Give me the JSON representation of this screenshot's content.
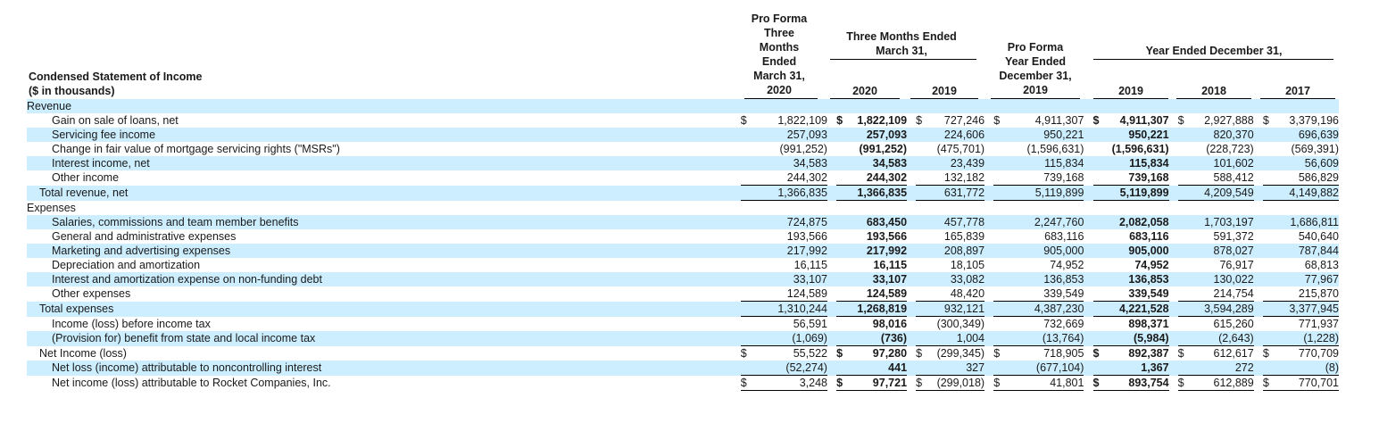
{
  "header": {
    "title_line1": "Condensed Statement of Income",
    "title_line2": "($ in thousands)",
    "col_proforma_q": [
      "Pro Forma",
      "Three",
      "Months",
      "Ended",
      "March 31,",
      "2020"
    ],
    "group_three_months": [
      "Three Months Ended",
      "March 31,"
    ],
    "col_q2020": "2020",
    "col_q2019": "2019",
    "col_proforma_y": [
      "Pro Forma",
      "Year Ended",
      "December 31,",
      "2019"
    ],
    "group_year": "Year Ended December 31,",
    "col_y2019": "2019",
    "col_y2018": "2018",
    "col_y2017": "2017"
  },
  "rows": [
    {
      "label": "Revenue",
      "indent": 0,
      "shade": true,
      "section": true
    },
    {
      "label": "Gain on sale of loans, net",
      "indent": 2,
      "shade": false,
      "cells": [
        {
          "s": "$",
          "v": "1,822,109"
        },
        {
          "s": "$",
          "v": "1,822,109"
        },
        {
          "s": "$",
          "v": "727,246"
        },
        {
          "s": "$",
          "v": "4,911,307"
        },
        {
          "s": "$",
          "v": "4,911,307"
        },
        {
          "s": "$",
          "v": "2,927,888"
        },
        {
          "s": "$",
          "v": "3,379,196"
        }
      ]
    },
    {
      "label": "Servicing fee income",
      "indent": 2,
      "shade": true,
      "cells": [
        {
          "s": "",
          "v": "257,093"
        },
        {
          "s": "",
          "v": "257,093"
        },
        {
          "s": "",
          "v": "224,606"
        },
        {
          "s": "",
          "v": "950,221"
        },
        {
          "s": "",
          "v": "950,221"
        },
        {
          "s": "",
          "v": "820,370"
        },
        {
          "s": "",
          "v": "696,639"
        }
      ]
    },
    {
      "label": "Change in fair value of mortgage servicing rights (\"MSRs\")",
      "indent": 2,
      "shade": false,
      "cells": [
        {
          "s": "",
          "v": "(991,252)"
        },
        {
          "s": "",
          "v": "(991,252)"
        },
        {
          "s": "",
          "v": "(475,701)"
        },
        {
          "s": "",
          "v": "(1,596,631)"
        },
        {
          "s": "",
          "v": "(1,596,631)"
        },
        {
          "s": "",
          "v": "(228,723)"
        },
        {
          "s": "",
          "v": "(569,391)"
        }
      ]
    },
    {
      "label": "Interest income, net",
      "indent": 2,
      "shade": true,
      "cells": [
        {
          "s": "",
          "v": "34,583"
        },
        {
          "s": "",
          "v": "34,583"
        },
        {
          "s": "",
          "v": "23,439"
        },
        {
          "s": "",
          "v": "115,834"
        },
        {
          "s": "",
          "v": "115,834"
        },
        {
          "s": "",
          "v": "101,602"
        },
        {
          "s": "",
          "v": "56,609"
        }
      ]
    },
    {
      "label": "Other income",
      "indent": 2,
      "shade": false,
      "underline": true,
      "cells": [
        {
          "s": "",
          "v": "244,302"
        },
        {
          "s": "",
          "v": "244,302"
        },
        {
          "s": "",
          "v": "132,182"
        },
        {
          "s": "",
          "v": "739,168"
        },
        {
          "s": "",
          "v": "739,168"
        },
        {
          "s": "",
          "v": "588,412"
        },
        {
          "s": "",
          "v": "586,829"
        }
      ]
    },
    {
      "label": "Total revenue, net",
      "indent": 1,
      "shade": true,
      "underline": true,
      "cells": [
        {
          "s": "",
          "v": "1,366,835"
        },
        {
          "s": "",
          "v": "1,366,835"
        },
        {
          "s": "",
          "v": "631,772"
        },
        {
          "s": "",
          "v": "5,119,899"
        },
        {
          "s": "",
          "v": "5,119,899"
        },
        {
          "s": "",
          "v": "4,209,549"
        },
        {
          "s": "",
          "v": "4,149,882"
        }
      ]
    },
    {
      "label": "Expenses",
      "indent": 0,
      "shade": false,
      "section": true
    },
    {
      "label": "Salaries, commissions and team member benefits",
      "indent": 2,
      "shade": true,
      "cells": [
        {
          "s": "",
          "v": "724,875"
        },
        {
          "s": "",
          "v": "683,450"
        },
        {
          "s": "",
          "v": "457,778"
        },
        {
          "s": "",
          "v": "2,247,760"
        },
        {
          "s": "",
          "v": "2,082,058"
        },
        {
          "s": "",
          "v": "1,703,197"
        },
        {
          "s": "",
          "v": "1,686,811"
        }
      ]
    },
    {
      "label": "General and administrative expenses",
      "indent": 2,
      "shade": false,
      "cells": [
        {
          "s": "",
          "v": "193,566"
        },
        {
          "s": "",
          "v": "193,566"
        },
        {
          "s": "",
          "v": "165,839"
        },
        {
          "s": "",
          "v": "683,116"
        },
        {
          "s": "",
          "v": "683,116"
        },
        {
          "s": "",
          "v": "591,372"
        },
        {
          "s": "",
          "v": "540,640"
        }
      ]
    },
    {
      "label": "Marketing and advertising expenses",
      "indent": 2,
      "shade": true,
      "cells": [
        {
          "s": "",
          "v": "217,992"
        },
        {
          "s": "",
          "v": "217,992"
        },
        {
          "s": "",
          "v": "208,897"
        },
        {
          "s": "",
          "v": "905,000"
        },
        {
          "s": "",
          "v": "905,000"
        },
        {
          "s": "",
          "v": "878,027"
        },
        {
          "s": "",
          "v": "787,844"
        }
      ]
    },
    {
      "label": "Depreciation and amortization",
      "indent": 2,
      "shade": false,
      "cells": [
        {
          "s": "",
          "v": "16,115"
        },
        {
          "s": "",
          "v": "16,115"
        },
        {
          "s": "",
          "v": "18,105"
        },
        {
          "s": "",
          "v": "74,952"
        },
        {
          "s": "",
          "v": "74,952"
        },
        {
          "s": "",
          "v": "76,917"
        },
        {
          "s": "",
          "v": "68,813"
        }
      ]
    },
    {
      "label": "Interest and amortization expense on non-funding debt",
      "indent": 2,
      "shade": true,
      "cells": [
        {
          "s": "",
          "v": "33,107"
        },
        {
          "s": "",
          "v": "33,107"
        },
        {
          "s": "",
          "v": "33,082"
        },
        {
          "s": "",
          "v": "136,853"
        },
        {
          "s": "",
          "v": "136,853"
        },
        {
          "s": "",
          "v": "130,022"
        },
        {
          "s": "",
          "v": "77,967"
        }
      ]
    },
    {
      "label": "Other expenses",
      "indent": 2,
      "shade": false,
      "underline": true,
      "cells": [
        {
          "s": "",
          "v": "124,589"
        },
        {
          "s": "",
          "v": "124,589"
        },
        {
          "s": "",
          "v": "48,420"
        },
        {
          "s": "",
          "v": "339,549"
        },
        {
          "s": "",
          "v": "339,549"
        },
        {
          "s": "",
          "v": "214,754"
        },
        {
          "s": "",
          "v": "215,870"
        }
      ]
    },
    {
      "label": "Total expenses",
      "indent": 1,
      "shade": true,
      "underline": true,
      "cells": [
        {
          "s": "",
          "v": "1,310,244"
        },
        {
          "s": "",
          "v": "1,268,819"
        },
        {
          "s": "",
          "v": "932,121"
        },
        {
          "s": "",
          "v": "4,387,230"
        },
        {
          "s": "",
          "v": "4,221,528"
        },
        {
          "s": "",
          "v": "3,594,289"
        },
        {
          "s": "",
          "v": "3,377,945"
        }
      ]
    },
    {
      "label": "Income (loss) before income tax",
      "indent": 2,
      "shade": false,
      "cells": [
        {
          "s": "",
          "v": "56,591"
        },
        {
          "s": "",
          "v": "98,016"
        },
        {
          "s": "",
          "v": "(300,349)"
        },
        {
          "s": "",
          "v": "732,669"
        },
        {
          "s": "",
          "v": "898,371"
        },
        {
          "s": "",
          "v": "615,260"
        },
        {
          "s": "",
          "v": "771,937"
        }
      ]
    },
    {
      "label": "(Provision for) benefit from state and local income tax",
      "indent": 2,
      "shade": true,
      "underline": true,
      "cells": [
        {
          "s": "",
          "v": "(1,069)"
        },
        {
          "s": "",
          "v": "(736)"
        },
        {
          "s": "",
          "v": "1,004"
        },
        {
          "s": "",
          "v": "(13,764)"
        },
        {
          "s": "",
          "v": "(5,984)"
        },
        {
          "s": "",
          "v": "(2,643)"
        },
        {
          "s": "",
          "v": "(1,228)"
        }
      ]
    },
    {
      "label": "Net Income (loss)",
      "indent": 1,
      "shade": false,
      "cells": [
        {
          "s": "$",
          "v": "55,522"
        },
        {
          "s": "$",
          "v": "97,280"
        },
        {
          "s": "$",
          "v": "(299,345)"
        },
        {
          "s": "$",
          "v": "718,905"
        },
        {
          "s": "$",
          "v": "892,387"
        },
        {
          "s": "$",
          "v": "612,617"
        },
        {
          "s": "$",
          "v": "770,709"
        }
      ]
    },
    {
      "label": "Net loss (income) attributable to noncontrolling interest",
      "indent": 2,
      "shade": true,
      "underline": true,
      "cells": [
        {
          "s": "",
          "v": "(52,274)"
        },
        {
          "s": "",
          "v": "441"
        },
        {
          "s": "",
          "v": "327"
        },
        {
          "s": "",
          "v": "(677,104)"
        },
        {
          "s": "",
          "v": "1,367"
        },
        {
          "s": "",
          "v": "272"
        },
        {
          "s": "",
          "v": "(8)"
        }
      ]
    },
    {
      "label": "Net income (loss) attributable to Rocket Companies, Inc.",
      "indent": 2,
      "shade": false,
      "double_underline": true,
      "cells": [
        {
          "s": "$",
          "v": "3,248"
        },
        {
          "s": "$",
          "v": "97,721"
        },
        {
          "s": "$",
          "v": "(299,018)"
        },
        {
          "s": "$",
          "v": "41,801"
        },
        {
          "s": "$",
          "v": "893,754"
        },
        {
          "s": "$",
          "v": "612,889"
        },
        {
          "s": "$",
          "v": "770,701"
        }
      ]
    }
  ],
  "bold_columns": [
    1,
    4
  ]
}
